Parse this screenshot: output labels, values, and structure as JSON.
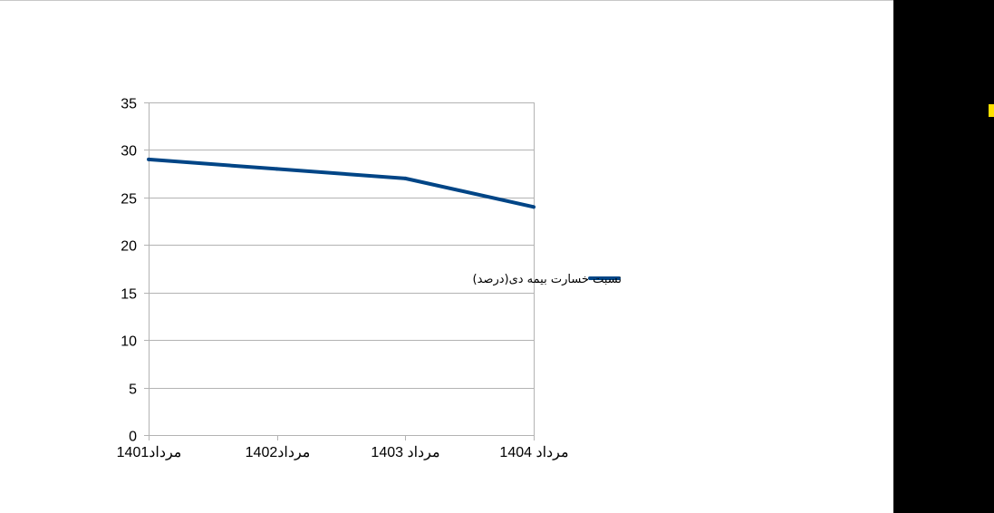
{
  "chart_data": {
    "type": "line",
    "categories": [
      "مرداد1401",
      "مرداد1402",
      "مرداد 1403",
      "مرداد 1404"
    ],
    "series": [
      {
        "name": "نسبت خسارت بیمه دی(درصد)",
        "values": [
          29,
          28,
          27,
          24
        ],
        "color": "#004586"
      }
    ],
    "ylim": [
      0,
      35
    ],
    "yticks": [
      0,
      5,
      10,
      15,
      20,
      25,
      30,
      35
    ],
    "grid": true,
    "legend": "right"
  },
  "colors": {
    "gridline": "#b3b3b3",
    "right_panel": "#000000",
    "marker": "#ffe000"
  }
}
